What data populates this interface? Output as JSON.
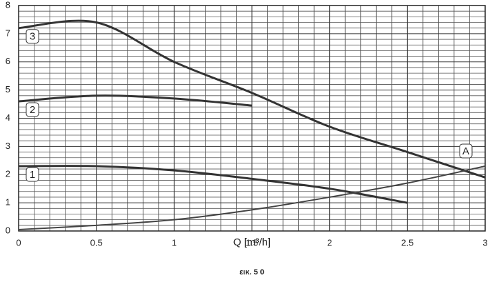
{
  "chart_data": {
    "type": "line",
    "xlabel": "Q [m³/h]",
    "caption": "εικ. 5 0",
    "x": [
      0,
      0.5,
      1,
      1.5,
      2,
      2.5,
      3
    ],
    "series": [
      {
        "name": "1",
        "color": "#333333",
        "values": [
          2.3,
          2.3,
          2.15,
          1.85,
          1.5,
          1.0,
          null
        ]
      },
      {
        "name": "2",
        "color": "#333333",
        "values": [
          4.6,
          4.8,
          4.7,
          4.45,
          null,
          null,
          null
        ]
      },
      {
        "name": "3",
        "color": "#333333",
        "values": [
          7.2,
          7.4,
          6.0,
          4.9,
          3.7,
          2.8,
          1.9
        ]
      },
      {
        "name": "A",
        "color": "#444444",
        "values": [
          0.05,
          0.2,
          0.4,
          0.75,
          1.2,
          1.7,
          2.3
        ]
      }
    ],
    "xlim": [
      0,
      3
    ],
    "ylim": [
      0,
      8
    ],
    "xticks": [
      0,
      0.5,
      1,
      1.5,
      2,
      2.5,
      3
    ],
    "yticks": [
      0,
      1,
      2,
      3,
      4,
      5,
      6,
      7,
      8
    ],
    "grid": true,
    "minor_grid": {
      "x": 5,
      "y": 5
    }
  }
}
